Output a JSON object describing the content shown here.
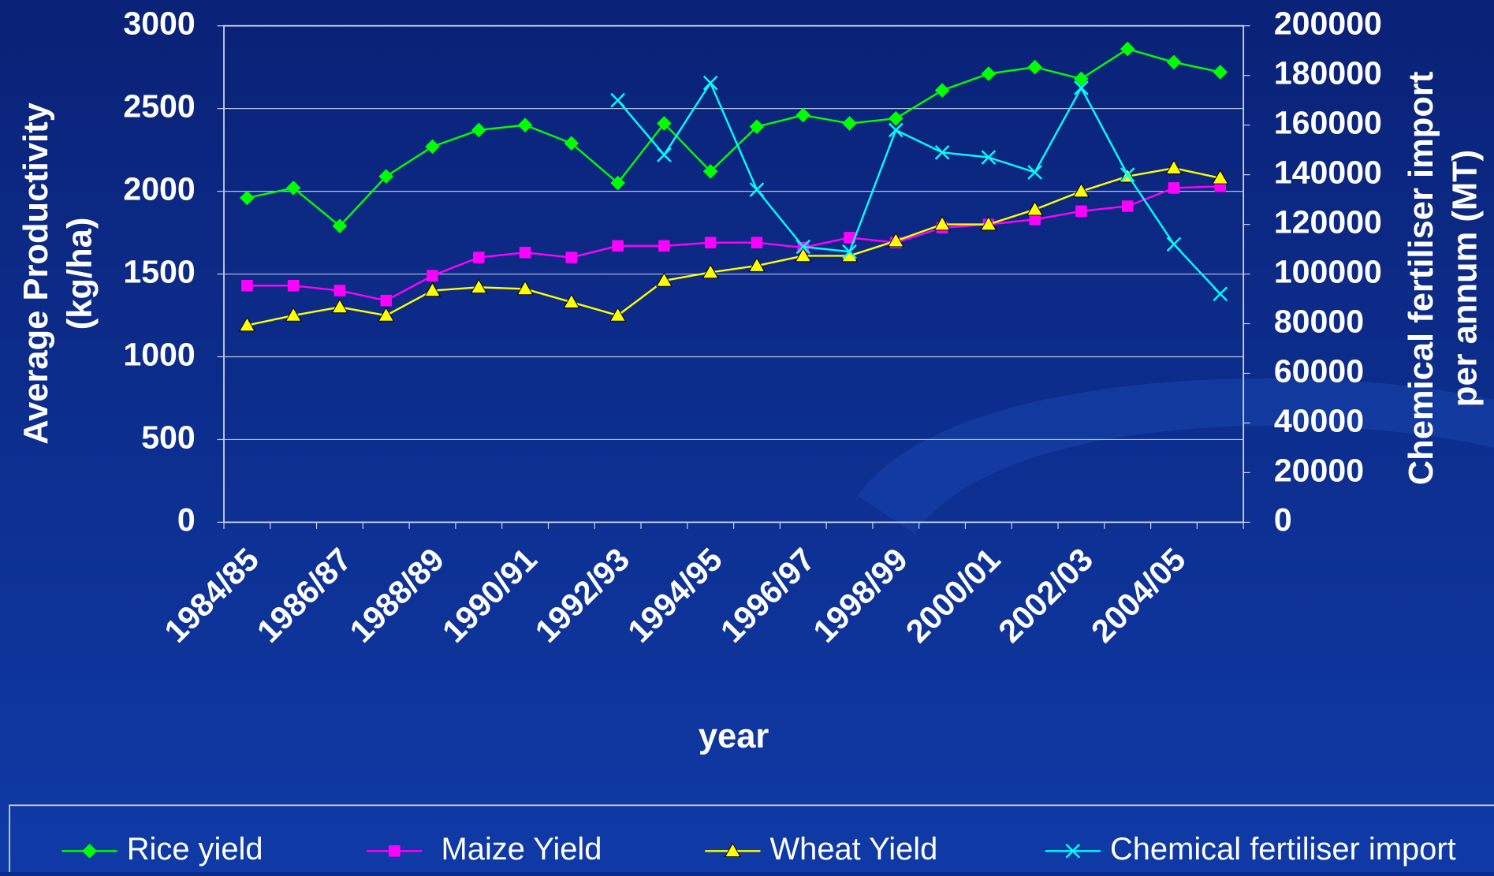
{
  "chart_data": {
    "type": "line",
    "categories": [
      "1984/85",
      null,
      "1986/87",
      null,
      "1988/89",
      null,
      "1990/91",
      null,
      "1992/93",
      null,
      "1994/95",
      null,
      "1996/97",
      null,
      "1998/99",
      null,
      "2000/01",
      null,
      "2002/03",
      null,
      "2004/05",
      null
    ],
    "xlabel": "year",
    "ylabel": [
      "Average Productivity",
      "(kg/ha)"
    ],
    "y2label": [
      "Chemical fertiliser import",
      "per annum (MT)"
    ],
    "ylim": [
      0,
      3000
    ],
    "yticks": [
      0,
      500,
      1000,
      1500,
      2000,
      2500,
      3000
    ],
    "y2lim": [
      0,
      200000
    ],
    "y2ticks": [
      0,
      20000,
      40000,
      60000,
      80000,
      100000,
      120000,
      140000,
      160000,
      180000,
      200000
    ],
    "grid": true,
    "legend": "bottom",
    "series": [
      {
        "name": "Rice yield",
        "color": "#00ff00",
        "marker": "diamond",
        "values": [
          1960,
          2020,
          1790,
          2090,
          2270,
          2370,
          2400,
          2290,
          2050,
          2410,
          2120,
          2390,
          2460,
          2410,
          2440,
          2610,
          2710,
          2750,
          2680,
          2860,
          2780,
          2720
        ]
      },
      {
        "name": "Maize Yield",
        "color": "#ff00ff",
        "marker": "square",
        "values": [
          1430,
          1430,
          1400,
          1340,
          1490,
          1600,
          1630,
          1600,
          1670,
          1670,
          1690,
          1690,
          1660,
          1720,
          1690,
          1780,
          1800,
          1830,
          1880,
          1910,
          2020,
          2030
        ]
      },
      {
        "name": "Wheat Yield",
        "color": "#ffff00",
        "marker": "triangle",
        "values": [
          1190,
          1250,
          1300,
          1250,
          1400,
          1420,
          1410,
          1330,
          1250,
          1460,
          1510,
          1550,
          1610,
          1610,
          1700,
          1800,
          1800,
          1890,
          2000,
          2090,
          2140,
          2080
        ]
      },
      {
        "name": "Chemical fertiliser import",
        "color": "#00ffff",
        "marker": "x",
        "axis": "y2",
        "values": [
          null,
          null,
          null,
          null,
          null,
          null,
          null,
          null,
          170000,
          148000,
          177000,
          134000,
          111000,
          109000,
          158000,
          149000,
          147000,
          141000,
          175000,
          140000,
          112000,
          92000
        ]
      }
    ]
  }
}
